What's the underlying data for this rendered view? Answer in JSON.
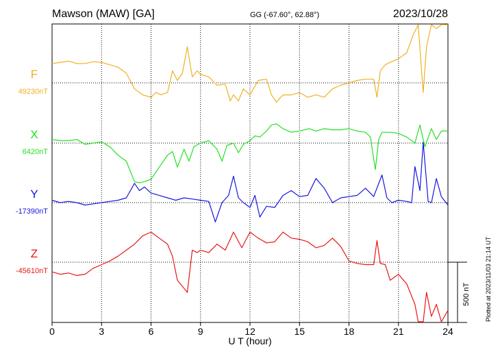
{
  "header": {
    "station": "Mawson (MAW)  [GA]",
    "coords": "GG (-67.60°,  62.88°)",
    "date": "2023/10/28"
  },
  "footer": {
    "plotted": "Plotted at 2023/11/03 21:14 UT"
  },
  "scale": {
    "label": "500 nT",
    "value_nT": 500
  },
  "chart_data": {
    "type": "line",
    "xlabel": "U T (hour)",
    "xlim": [
      0,
      24
    ],
    "xticks": [
      0,
      3,
      6,
      9,
      12,
      15,
      18,
      21,
      24
    ],
    "xtick_labels": [
      "0",
      "3",
      "6",
      "9",
      "12",
      "15",
      "18",
      "21",
      "24"
    ],
    "grid": true,
    "series": [
      {
        "name": "F",
        "baseline_label": "49230nT",
        "color": "#f0b020",
        "x": [
          0,
          0.5,
          1,
          1.5,
          2,
          2.5,
          3,
          3.5,
          4,
          4.5,
          5,
          5.5,
          6,
          6.3,
          6.6,
          7,
          7.3,
          7.6,
          7.9,
          8.2,
          8.5,
          8.8,
          9,
          9.5,
          10,
          10.5,
          10.8,
          11,
          11.3,
          11.6,
          12,
          12.5,
          13,
          13.3,
          13.6,
          14,
          14.5,
          15,
          15.5,
          16,
          16.5,
          17,
          17.5,
          18,
          18.5,
          19,
          19.5,
          19.7,
          19.9,
          20.2,
          20.5,
          21,
          21.5,
          21.9,
          22.2,
          22.4,
          22.5,
          22.7,
          23,
          23.3,
          23.6,
          24
        ],
        "values": [
          160,
          170,
          180,
          160,
          160,
          175,
          170,
          150,
          130,
          80,
          -50,
          -100,
          -120,
          -80,
          -100,
          -80,
          100,
          20,
          80,
          300,
          50,
          100,
          70,
          50,
          -20,
          -10,
          -150,
          -100,
          -150,
          -50,
          -100,
          20,
          30,
          -100,
          -160,
          -100,
          -100,
          -80,
          -120,
          -100,
          -120,
          -50,
          -20,
          0,
          20,
          30,
          30,
          -120,
          100,
          150,
          170,
          200,
          250,
          400,
          550,
          100,
          -80,
          300,
          600,
          450,
          550,
          500
        ]
      },
      {
        "name": "X",
        "baseline_label": "6420nT",
        "color": "#22e022",
        "x": [
          0,
          0.5,
          1,
          1.5,
          2,
          2.5,
          3,
          3.5,
          4,
          4.5,
          5,
          5.3,
          5.6,
          6,
          6.5,
          7,
          7.3,
          7.6,
          8,
          8.3,
          8.6,
          9,
          9.5,
          10,
          10.3,
          10.6,
          11,
          11.3,
          11.6,
          12,
          12.3,
          12.6,
          13,
          13.3,
          13.6,
          14,
          14.5,
          15,
          15.3,
          15.6,
          16,
          16.5,
          17,
          17.5,
          18,
          18.5,
          19,
          19.3,
          19.6,
          19.8,
          20,
          20.5,
          21,
          21.5,
          22,
          22.3,
          22.6,
          23,
          23.3,
          23.6,
          24
        ],
        "values": [
          30,
          20,
          20,
          30,
          -10,
          0,
          10,
          -30,
          -100,
          -150,
          -320,
          -330,
          -320,
          -300,
          -200,
          -100,
          -70,
          -200,
          -50,
          -150,
          -30,
          0,
          20,
          -50,
          -150,
          -20,
          0,
          -80,
          -10,
          20,
          60,
          50,
          100,
          150,
          160,
          120,
          90,
          100,
          110,
          120,
          100,
          120,
          110,
          110,
          120,
          100,
          90,
          50,
          -220,
          30,
          90,
          90,
          80,
          50,
          0,
          150,
          -30,
          120,
          30,
          100,
          100
        ]
      },
      {
        "name": "Y",
        "baseline_label": "-17390nT",
        "color": "#1515e0",
        "x": [
          0,
          0.5,
          1,
          1.5,
          2,
          2.5,
          3,
          3.5,
          4,
          4.5,
          5,
          5.3,
          5.6,
          6,
          6.5,
          7,
          7.5,
          8,
          8.5,
          9,
          9.5,
          9.9,
          10.3,
          10.7,
          11,
          11.3,
          11.6,
          12,
          12.3,
          12.6,
          13,
          13.5,
          14,
          14.5,
          15,
          15.5,
          16,
          16.5,
          17,
          17.5,
          18,
          18.5,
          19,
          19.5,
          20,
          20.3,
          20.6,
          21,
          21.5,
          21.8,
          22,
          22.3,
          22.5,
          22.8,
          23,
          23.3,
          23.6,
          24
        ],
        "values": [
          20,
          0,
          10,
          0,
          -20,
          -10,
          0,
          10,
          20,
          40,
          160,
          100,
          130,
          80,
          60,
          40,
          20,
          40,
          30,
          20,
          10,
          -160,
          0,
          60,
          220,
          40,
          0,
          -40,
          60,
          -120,
          -30,
          -40,
          60,
          100,
          50,
          60,
          200,
          120,
          0,
          40,
          50,
          60,
          120,
          50,
          230,
          40,
          0,
          20,
          10,
          0,
          300,
          100,
          500,
          10,
          0,
          200,
          50,
          -20
        ]
      },
      {
        "name": "Z",
        "baseline_label": "-45610nT",
        "color": "#e81515",
        "x": [
          0,
          0.5,
          1,
          1.5,
          2,
          2.5,
          3,
          3.5,
          4,
          4.5,
          5,
          5.5,
          6,
          6.5,
          7,
          7.3,
          7.6,
          7.9,
          8.2,
          8.5,
          8.8,
          9,
          9.5,
          10,
          10.5,
          11,
          11.5,
          12,
          12.5,
          13,
          13.5,
          14,
          14.5,
          15,
          15.5,
          16,
          16.5,
          17,
          17.5,
          18,
          18.5,
          19,
          19.5,
          19.7,
          19.9,
          20.2,
          20.5,
          21,
          21.5,
          22,
          22.2,
          22.5,
          22.7,
          23,
          23.3,
          23.6,
          24
        ],
        "values": [
          -80,
          -100,
          -90,
          -110,
          -100,
          -50,
          -20,
          10,
          50,
          100,
          150,
          220,
          250,
          200,
          150,
          50,
          -150,
          -200,
          -250,
          100,
          80,
          100,
          80,
          150,
          100,
          250,
          120,
          250,
          200,
          160,
          170,
          250,
          200,
          190,
          170,
          120,
          140,
          200,
          130,
          10,
          -10,
          -20,
          -20,
          180,
          -10,
          -20,
          -150,
          -100,
          -180,
          -350,
          -500,
          -600,
          -250,
          -450,
          -350,
          -550,
          -400
        ]
      }
    ]
  }
}
